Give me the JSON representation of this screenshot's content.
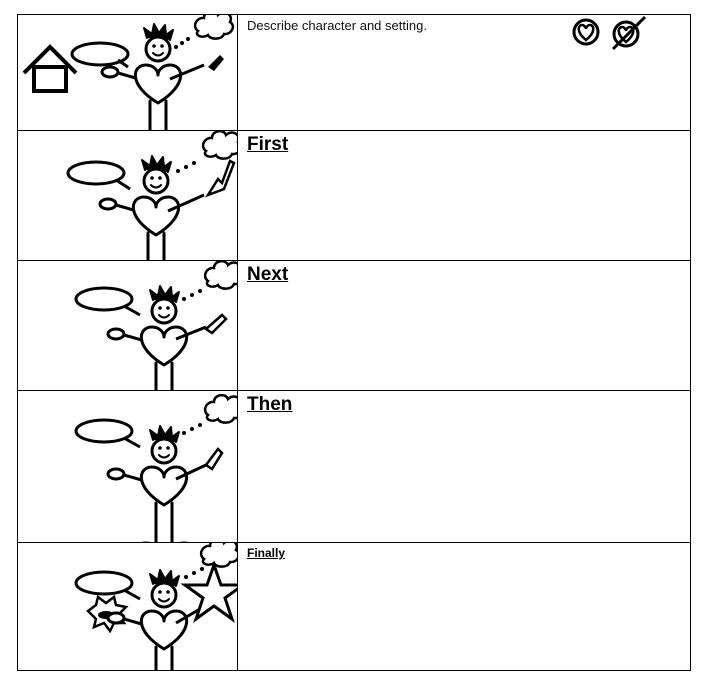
{
  "rows": [
    {
      "label": "Describe character and setting.",
      "kind": "intro"
    },
    {
      "label": "First",
      "kind": "step"
    },
    {
      "label": "Next",
      "kind": "step"
    },
    {
      "label": "Then",
      "kind": "step"
    },
    {
      "label": "Finally",
      "kind": "final"
    }
  ],
  "icons": {
    "like": "heart-in-circle-icon",
    "dislike": "crossed-heart-icon"
  },
  "colors": {
    "ink": "#000000",
    "paper": "#ffffff"
  }
}
